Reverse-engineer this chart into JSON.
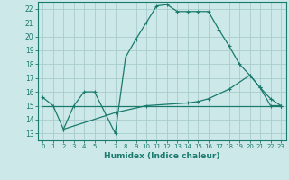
{
  "xlabel": "Humidex (Indice chaleur)",
  "xlim": [
    -0.5,
    23.5
  ],
  "ylim": [
    12.5,
    22.5
  ],
  "yticks": [
    13,
    14,
    15,
    16,
    17,
    18,
    19,
    20,
    21,
    22
  ],
  "xtick_labels": [
    "0",
    "1",
    "2",
    "3",
    "4",
    "5",
    "",
    "7",
    "8",
    "9",
    "10",
    "11",
    "12",
    "13",
    "14",
    "15",
    "16",
    "17",
    "18",
    "19",
    "20",
    "21",
    "22",
    "23"
  ],
  "line_color": "#1a7a6e",
  "bg_color": "#cce8e8",
  "grid_color": "#aacccc",
  "line1_x": [
    0,
    1,
    2,
    3,
    4,
    5,
    7,
    8,
    9,
    10,
    11,
    12,
    13,
    14,
    15,
    16,
    17,
    18,
    19,
    20,
    21,
    22,
    23
  ],
  "line1_y": [
    15.6,
    15.0,
    13.3,
    15.0,
    16.0,
    16.0,
    13.0,
    18.5,
    19.8,
    21.0,
    22.2,
    22.3,
    21.8,
    21.8,
    21.8,
    21.8,
    20.5,
    19.3,
    18.0,
    17.2,
    16.3,
    15.0,
    15.0
  ],
  "line2_x": [
    0,
    23
  ],
  "line2_y": [
    15.0,
    15.0
  ],
  "line3_x": [
    2,
    7,
    10,
    14,
    15,
    16,
    18,
    20,
    21,
    22,
    23
  ],
  "line3_y": [
    13.3,
    14.5,
    15.0,
    15.2,
    15.3,
    15.5,
    16.2,
    17.2,
    16.3,
    15.5,
    15.0
  ]
}
